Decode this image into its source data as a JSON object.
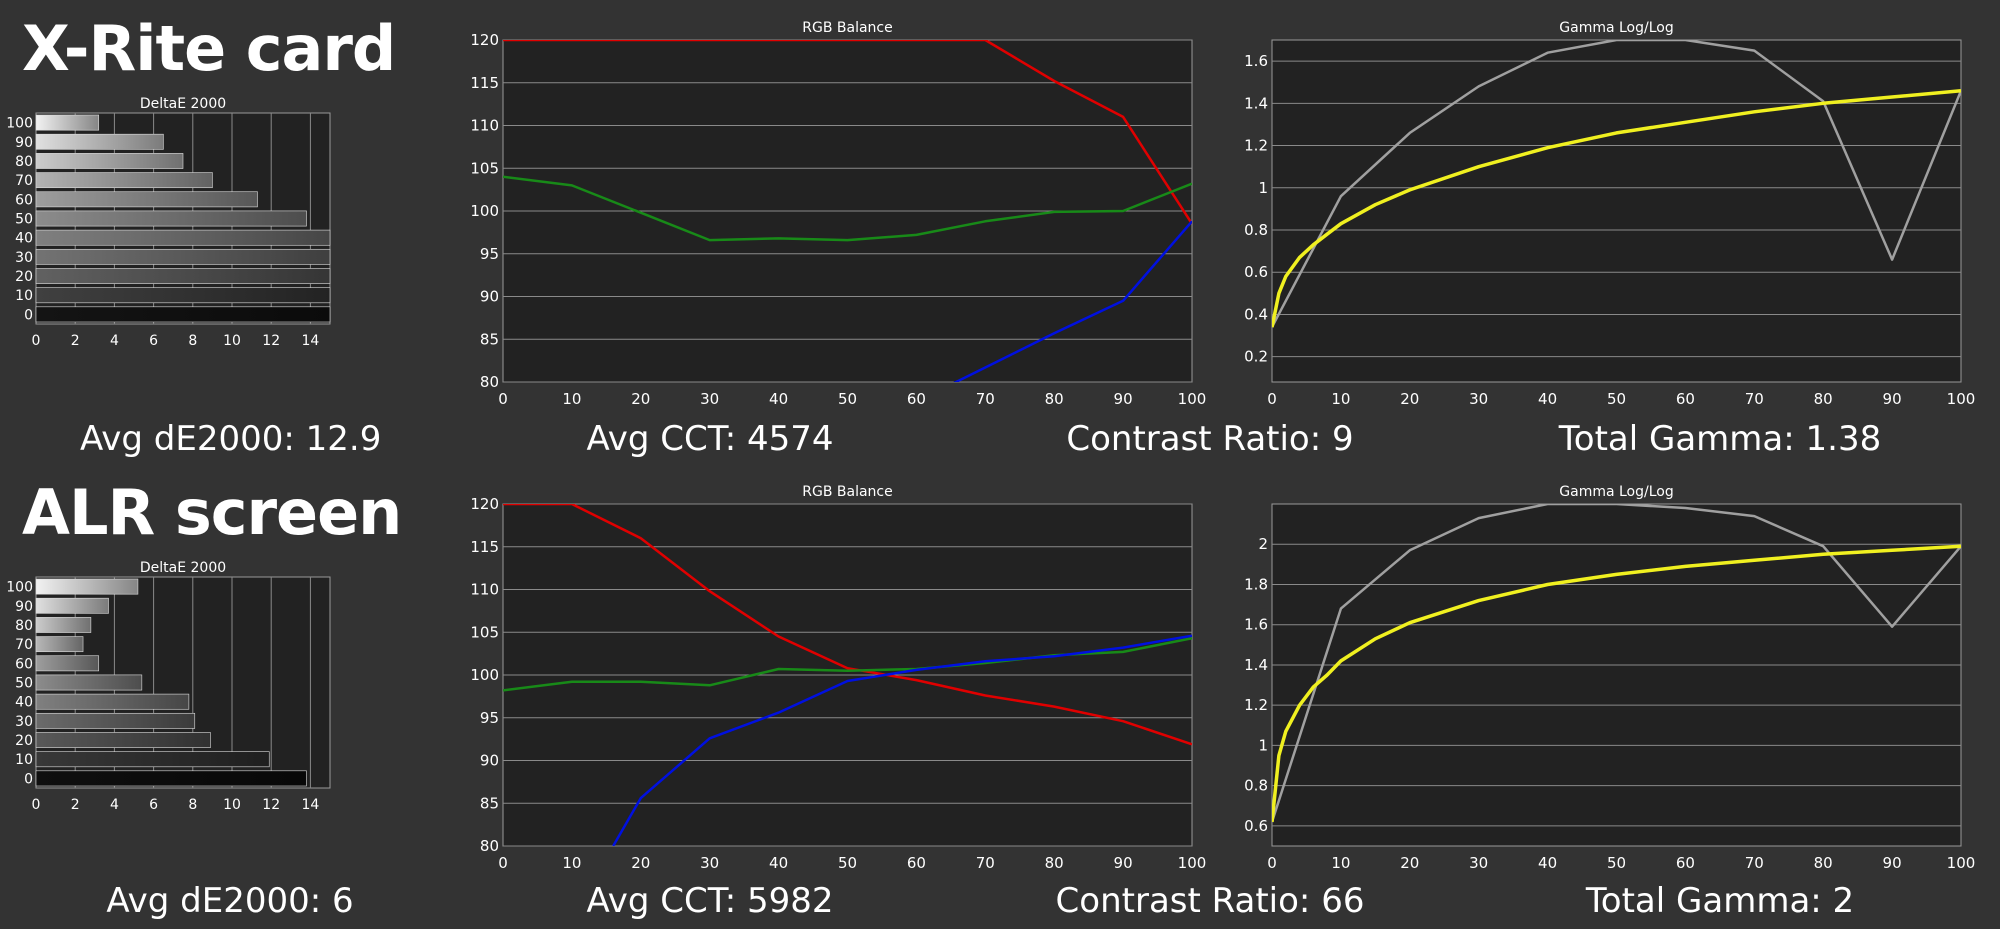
{
  "colors": {
    "background": "#333333",
    "plot_background": "#222222",
    "grid": "#8a8a8a",
    "red": "#e00000",
    "green": "#188a18",
    "blue": "#0010e0",
    "gray_line": "#a0a0a0",
    "yellow": "#f0f020"
  },
  "sections": [
    {
      "heading": "X-Rite card",
      "stats": {
        "avg_de": "Avg dE2000: 12.9",
        "avg_cct": "Avg CCT: 4574",
        "contrast": "Contrast Ratio: 9",
        "total_gamma": "Total Gamma: 1.38"
      }
    },
    {
      "heading": "ALR screen",
      "stats": {
        "avg_de": "Avg dE2000: 6",
        "avg_cct": "Avg CCT: 5982",
        "contrast": "Contrast Ratio: 66",
        "total_gamma": "Total Gamma: 2"
      }
    }
  ],
  "chart_data": [
    {
      "id": "xrite-deltae",
      "type": "bar",
      "orientation": "horizontal",
      "title": "DeltaE 2000",
      "categories": [
        "100",
        "90",
        "80",
        "70",
        "60",
        "50",
        "40",
        "30",
        "20",
        "10",
        "0"
      ],
      "values": [
        3.2,
        6.5,
        7.5,
        9.0,
        11.3,
        13.8,
        15,
        15,
        15,
        15,
        15
      ],
      "shade": [
        0.95,
        0.88,
        0.8,
        0.7,
        0.62,
        0.55,
        0.5,
        0.45,
        0.38,
        0.25,
        0.08
      ],
      "xlim": [
        0,
        15
      ],
      "xticks": [
        0,
        2,
        4,
        6,
        8,
        10,
        12,
        14
      ],
      "grid": true
    },
    {
      "id": "xrite-rgb",
      "type": "line",
      "title": "RGB Balance",
      "x": [
        0,
        10,
        20,
        30,
        40,
        50,
        60,
        70,
        80,
        90,
        100
      ],
      "xticks": [
        0,
        10,
        20,
        30,
        40,
        50,
        60,
        70,
        80,
        90,
        100
      ],
      "yticks": [
        80,
        85,
        90,
        95,
        100,
        105,
        110,
        115,
        120
      ],
      "xlim": [
        0,
        100
      ],
      "ylim": [
        80,
        120
      ],
      "grid": true,
      "series": [
        {
          "color": "red",
          "values": [
            120,
            120,
            120,
            120,
            120,
            120,
            120,
            120,
            115.2,
            111,
            98.5
          ]
        },
        {
          "color": "green",
          "values": [
            104,
            103,
            99.8,
            96.6,
            96.8,
            96.6,
            97.2,
            98.8,
            99.9,
            100,
            103.2
          ]
        },
        {
          "color": "blue",
          "values": [
            null,
            null,
            null,
            null,
            null,
            null,
            null,
            81.7,
            85.7,
            89.5,
            98.8
          ]
        }
      ]
    },
    {
      "id": "xrite-gamma",
      "type": "line",
      "title": "Gamma Log/Log",
      "xlim": [
        0,
        100
      ],
      "ylim": [
        0.08,
        1.7
      ],
      "xticks": [
        0,
        10,
        20,
        30,
        40,
        50,
        60,
        70,
        80,
        90,
        100
      ],
      "yticks": [
        0.2,
        0.4,
        0.6,
        0.8,
        1,
        1.2,
        1.4,
        1.6
      ],
      "grid": true,
      "series": [
        {
          "color": "gray_line",
          "x": [
            0,
            10,
            20,
            30,
            40,
            50,
            60,
            70,
            80,
            90,
            100
          ],
          "values": [
            0.34,
            0.96,
            1.26,
            1.48,
            1.64,
            1.7,
            1.7,
            1.65,
            1.41,
            0.66,
            1.46
          ]
        },
        {
          "color": "yellow",
          "x": [
            0,
            1,
            2,
            4,
            6,
            8,
            10,
            15,
            20,
            30,
            40,
            50,
            60,
            70,
            80,
            90,
            100
          ],
          "values": [
            0.34,
            0.5,
            0.58,
            0.67,
            0.73,
            0.78,
            0.83,
            0.92,
            0.99,
            1.1,
            1.19,
            1.26,
            1.31,
            1.36,
            1.4,
            1.43,
            1.46
          ]
        }
      ]
    },
    {
      "id": "alr-deltae",
      "type": "bar",
      "orientation": "horizontal",
      "title": "DeltaE 2000",
      "categories": [
        "100",
        "90",
        "80",
        "70",
        "60",
        "50",
        "40",
        "30",
        "20",
        "10",
        "0"
      ],
      "values": [
        5.2,
        3.7,
        2.8,
        2.4,
        3.2,
        5.4,
        7.8,
        8.1,
        8.9,
        11.9,
        13.8
      ],
      "shade": [
        0.95,
        0.88,
        0.8,
        0.72,
        0.62,
        0.55,
        0.5,
        0.42,
        0.35,
        0.22,
        0.06
      ],
      "xlim": [
        0,
        15
      ],
      "xticks": [
        0,
        2,
        4,
        6,
        8,
        10,
        12,
        14
      ],
      "grid": true
    },
    {
      "id": "alr-rgb",
      "type": "line",
      "title": "RGB Balance",
      "x": [
        0,
        10,
        20,
        30,
        40,
        50,
        60,
        70,
        80,
        90,
        100
      ],
      "xticks": [
        0,
        10,
        20,
        30,
        40,
        50,
        60,
        70,
        80,
        90,
        100
      ],
      "yticks": [
        80,
        85,
        90,
        95,
        100,
        105,
        110,
        115,
        120
      ],
      "xlim": [
        0,
        100
      ],
      "ylim": [
        80,
        120
      ],
      "grid": true,
      "series": [
        {
          "color": "red",
          "values": [
            120,
            120,
            116,
            109.8,
            104.5,
            100.8,
            99.4,
            97.6,
            96.3,
            94.6,
            91.9
          ]
        },
        {
          "color": "green",
          "values": [
            98.2,
            99.2,
            99.2,
            98.8,
            100.7,
            100.5,
            100.7,
            101.4,
            102.3,
            102.7,
            104.3
          ]
        },
        {
          "color": "blue",
          "values": [
            null,
            null,
            85.6,
            92.6,
            95.6,
            99.3,
            100.6,
            101.6,
            102.2,
            103.2,
            104.6
          ]
        }
      ],
      "blue_start": [
        16,
        80
      ]
    },
    {
      "id": "alr-gamma",
      "type": "line",
      "title": "Gamma Log/Log",
      "xlim": [
        0,
        100
      ],
      "ylim": [
        0.5,
        2.2
      ],
      "xticks": [
        0,
        10,
        20,
        30,
        40,
        50,
        60,
        70,
        80,
        90,
        100
      ],
      "yticks": [
        0.6,
        0.8,
        1,
        1.2,
        1.4,
        1.6,
        1.8,
        2
      ],
      "grid": true,
      "series": [
        {
          "color": "gray_line",
          "x": [
            0,
            10,
            20,
            30,
            40,
            50,
            60,
            70,
            80,
            90,
            100
          ],
          "values": [
            0.62,
            1.68,
            1.97,
            2.13,
            2.2,
            2.2,
            2.18,
            2.14,
            1.99,
            1.59,
            1.99
          ]
        },
        {
          "color": "yellow",
          "x": [
            0,
            1,
            2,
            4,
            6,
            8,
            10,
            15,
            20,
            30,
            40,
            50,
            60,
            70,
            80,
            90,
            100
          ],
          "values": [
            0.62,
            0.95,
            1.07,
            1.2,
            1.29,
            1.35,
            1.42,
            1.53,
            1.61,
            1.72,
            1.8,
            1.85,
            1.89,
            1.92,
            1.95,
            1.97,
            1.99
          ]
        }
      ]
    }
  ]
}
